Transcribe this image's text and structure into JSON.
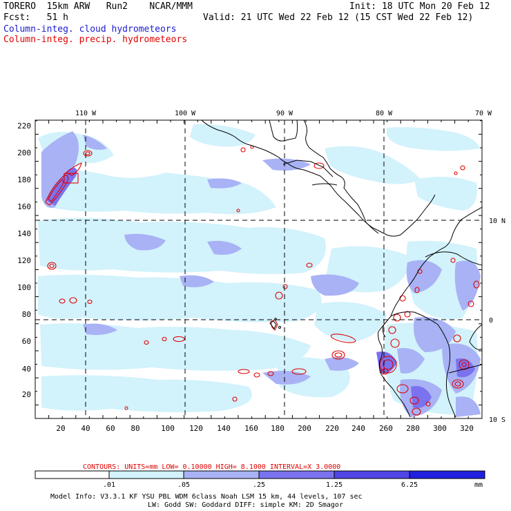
{
  "header": {
    "model": "TORERO  15km ARW   Run2    NCAR/MMM",
    "init": "Init: 18 UTC Mon 20 Feb 12",
    "fcst": "Fcst:   51 h",
    "valid": "Valid: 21 UTC Wed 22 Feb 12 (15 CST Wed 22 Feb 12)",
    "legend_cloud": "Column-integ. cloud hydrometeors",
    "legend_precip": "Column-integ. precip. hydrometeors",
    "cloud_color": "#1a1acc",
    "precip_color": "#e00000"
  },
  "axes": {
    "x_ticks": [
      "20",
      "40",
      "60",
      "80",
      "100",
      "120",
      "140",
      "160",
      "180",
      "200",
      "220",
      "240",
      "260",
      "280",
      "300",
      "320"
    ],
    "y_ticks": [
      "20",
      "40",
      "60",
      "80",
      "100",
      "120",
      "140",
      "160",
      "180",
      "200",
      "220"
    ],
    "lon_labels": [
      "110 W",
      "100 W",
      "90 W",
      "80 W",
      "70 W"
    ],
    "lat_labels": [
      "10 N",
      "0",
      "10 S"
    ]
  },
  "contour_info": {
    "label": "CONTOURS:  UNITS=mm  LOW= 0.10000    HIGH=  8.1000    INTERVAL=X  3.0000"
  },
  "colorbar": {
    "levels": [
      ".01",
      ".05",
      ".25",
      "1.25",
      "6.25"
    ],
    "unit": "mm",
    "colors": [
      "#ffffff",
      "#d2f2fc",
      "#a8b2f4",
      "#7a72ee",
      "#5046e6",
      "#2020e0"
    ]
  },
  "footer": {
    "line1": "Model Info: V3.3.1    KF      YSU PBL  WDM 6class  Noah LSM  15 km,    44 levels,  107 sec",
    "line2": "LW: Godd SW: Goddard DIFF: simple KM: 2D Smagor"
  }
}
